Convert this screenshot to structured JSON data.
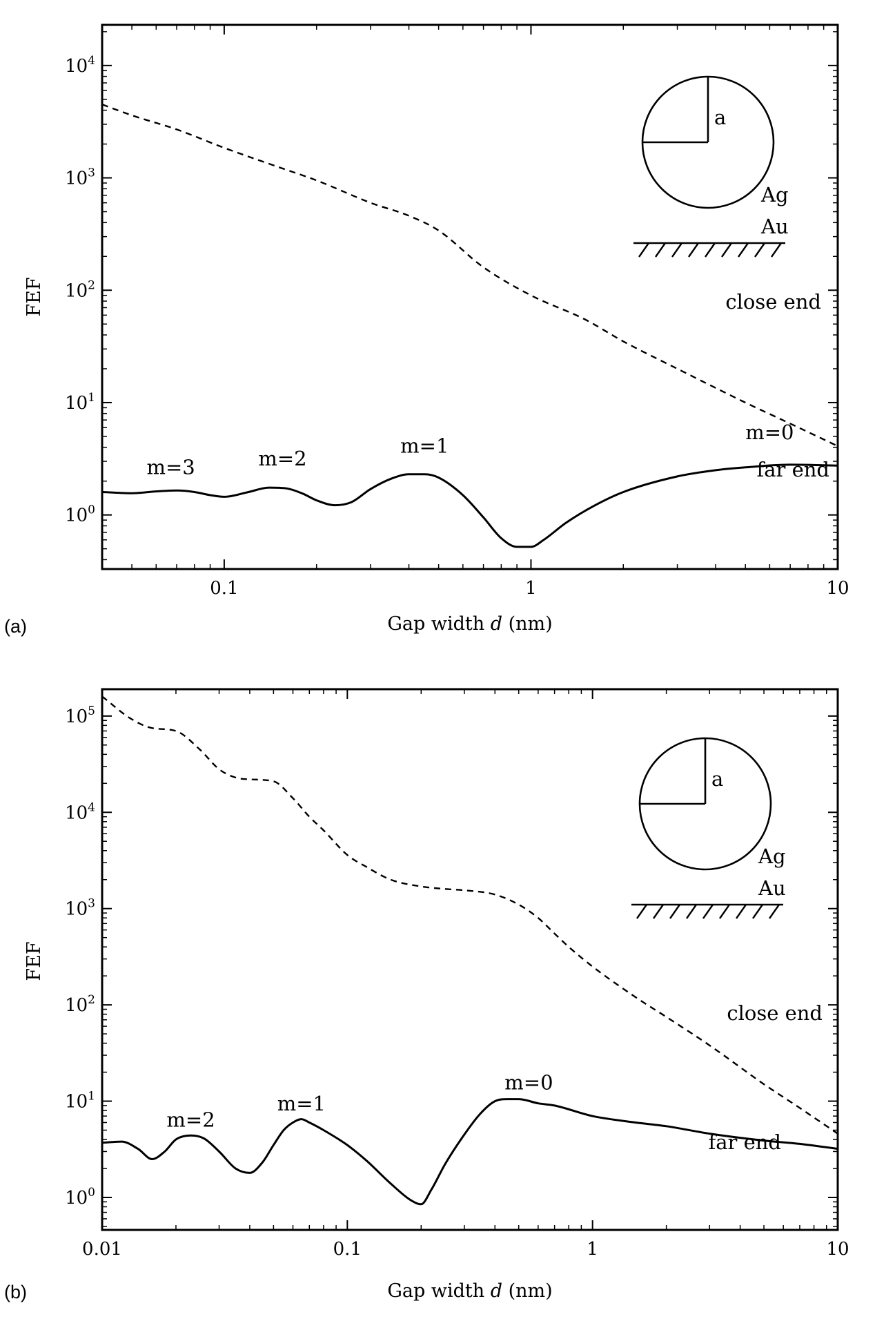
{
  "chart_data": [
    {
      "panel_label": "(a)",
      "type": "line",
      "xlabel_text": "Gap width",
      "xlabel_var": "d",
      "xlabel_unit": "(nm)",
      "ylabel": "FEF",
      "x_scale": "log",
      "y_scale": "log",
      "xlim": [
        0.04,
        10
      ],
      "ylim": [
        0.33,
        23000
      ],
      "x_ticks": [
        {
          "value": 0.1,
          "label": "0.1"
        },
        {
          "value": 1,
          "label": "1"
        },
        {
          "value": 10,
          "label": "10"
        }
      ],
      "y_ticks": [
        {
          "value": 1,
          "base": "10",
          "exp": "0"
        },
        {
          "value": 10,
          "base": "10",
          "exp": "1"
        },
        {
          "value": 100,
          "base": "10",
          "exp": "2"
        },
        {
          "value": 1000,
          "base": "10",
          "exp": "3"
        },
        {
          "value": 10000,
          "base": "10",
          "exp": "4"
        }
      ],
      "series": [
        {
          "name": "close end",
          "style": "dashed",
          "x": [
            0.04,
            0.05,
            0.07,
            0.1,
            0.15,
            0.2,
            0.3,
            0.4,
            0.5,
            0.7,
            1.0,
            1.5,
            2.0,
            3.0,
            5.0,
            7.0,
            10.0
          ],
          "y": [
            4500,
            3600,
            2700,
            1850,
            1250,
            950,
            600,
            460,
            340,
            160,
            90,
            55,
            35,
            20,
            10,
            6.5,
            4.1
          ]
        },
        {
          "name": "far end",
          "style": "solid",
          "x": [
            0.04,
            0.05,
            0.06,
            0.07,
            0.08,
            0.09,
            0.1,
            0.12,
            0.14,
            0.16,
            0.18,
            0.2,
            0.23,
            0.26,
            0.3,
            0.35,
            0.4,
            0.45,
            0.5,
            0.6,
            0.7,
            0.8,
            0.9,
            1.0,
            1.1,
            1.3,
            1.6,
            2.0,
            3.0,
            4.0,
            5.0,
            7.0,
            10.0
          ],
          "y": [
            1.6,
            1.56,
            1.62,
            1.65,
            1.6,
            1.5,
            1.45,
            1.6,
            1.75,
            1.72,
            1.55,
            1.35,
            1.22,
            1.3,
            1.7,
            2.1,
            2.3,
            2.3,
            2.15,
            1.5,
            0.95,
            0.62,
            0.52,
            0.52,
            0.6,
            0.85,
            1.2,
            1.6,
            2.2,
            2.5,
            2.65,
            2.8,
            2.75
          ]
        }
      ],
      "annotations": {
        "modes": [
          {
            "label": "m=3",
            "x": 0.067,
            "y": 2.0
          },
          {
            "label": "m=2",
            "x": 0.155,
            "y": 2.4
          },
          {
            "label": "m=1",
            "x": 0.45,
            "y": 3.1
          },
          {
            "label": "m=0",
            "x": 6.0,
            "y": 4.1
          }
        ],
        "close_end_label": "close end",
        "far_end_label": "far end"
      },
      "inset": {
        "radius_label": "a",
        "sphere_label": "Ag",
        "substrate_label": "Au"
      }
    },
    {
      "panel_label": "(b)",
      "type": "line",
      "xlabel_text": "Gap width",
      "xlabel_var": "d",
      "xlabel_unit": "(nm)",
      "ylabel": "FEF",
      "x_scale": "log",
      "y_scale": "log",
      "xlim": [
        0.01,
        10
      ],
      "ylim": [
        0.46,
        190000
      ],
      "x_ticks": [
        {
          "value": 0.01,
          "label": "0.01"
        },
        {
          "value": 0.1,
          "label": "0.1"
        },
        {
          "value": 1,
          "label": "1"
        },
        {
          "value": 10,
          "label": "10"
        }
      ],
      "y_ticks": [
        {
          "value": 1,
          "base": "10",
          "exp": "0"
        },
        {
          "value": 10,
          "base": "10",
          "exp": "1"
        },
        {
          "value": 100,
          "base": "10",
          "exp": "2"
        },
        {
          "value": 1000,
          "base": "10",
          "exp": "3"
        },
        {
          "value": 10000,
          "base": "10",
          "exp": "4"
        },
        {
          "value": 100000,
          "base": "10",
          "exp": "5"
        }
      ],
      "series": [
        {
          "name": "close end",
          "style": "dashed",
          "x": [
            0.01,
            0.013,
            0.016,
            0.02,
            0.025,
            0.03,
            0.035,
            0.04,
            0.05,
            0.06,
            0.07,
            0.08,
            0.1,
            0.12,
            0.15,
            0.2,
            0.25,
            0.3,
            0.4,
            0.5,
            0.6,
            0.7,
            0.8,
            1.0,
            1.5,
            2.0,
            3.0,
            5.0,
            7.0,
            10.0
          ],
          "y": [
            160000,
            95000,
            75000,
            70000,
            45000,
            28000,
            23000,
            22000,
            21000,
            14000,
            9000,
            6500,
            3600,
            2700,
            2000,
            1700,
            1600,
            1550,
            1400,
            1100,
            800,
            550,
            400,
            250,
            120,
            75,
            38,
            15,
            8.5,
            4.6
          ]
        },
        {
          "name": "far end",
          "style": "solid",
          "x": [
            0.01,
            0.012,
            0.014,
            0.016,
            0.018,
            0.02,
            0.023,
            0.026,
            0.03,
            0.035,
            0.04,
            0.045,
            0.05,
            0.055,
            0.06,
            0.065,
            0.07,
            0.08,
            0.1,
            0.12,
            0.15,
            0.18,
            0.2,
            0.22,
            0.25,
            0.3,
            0.35,
            0.4,
            0.45,
            0.5,
            0.6,
            0.7,
            1.0,
            1.5,
            2.0,
            3.0,
            5.0,
            7.0,
            10.0
          ],
          "y": [
            3.7,
            3.8,
            3.2,
            2.5,
            3.0,
            4.0,
            4.4,
            4.1,
            3.0,
            2.0,
            1.8,
            2.3,
            3.5,
            5.0,
            6.0,
            6.5,
            6.0,
            5.0,
            3.5,
            2.4,
            1.4,
            0.95,
            0.85,
            1.2,
            2.2,
            4.5,
            7.5,
            10,
            10.5,
            10.5,
            9.5,
            9.0,
            7.0,
            6.0,
            5.5,
            4.6,
            3.9,
            3.6,
            3.2
          ]
        }
      ],
      "annotations": {
        "modes": [
          {
            "label": "m=2",
            "x": 0.023,
            "y": 4.6
          },
          {
            "label": "m=1",
            "x": 0.065,
            "y": 6.8
          },
          {
            "label": "m=0",
            "x": 0.55,
            "y": 11.2
          }
        ],
        "close_end_label": "close end",
        "far_end_label": "far end"
      },
      "inset": {
        "radius_label": "a",
        "sphere_label": "Ag",
        "substrate_label": "Au"
      }
    }
  ]
}
